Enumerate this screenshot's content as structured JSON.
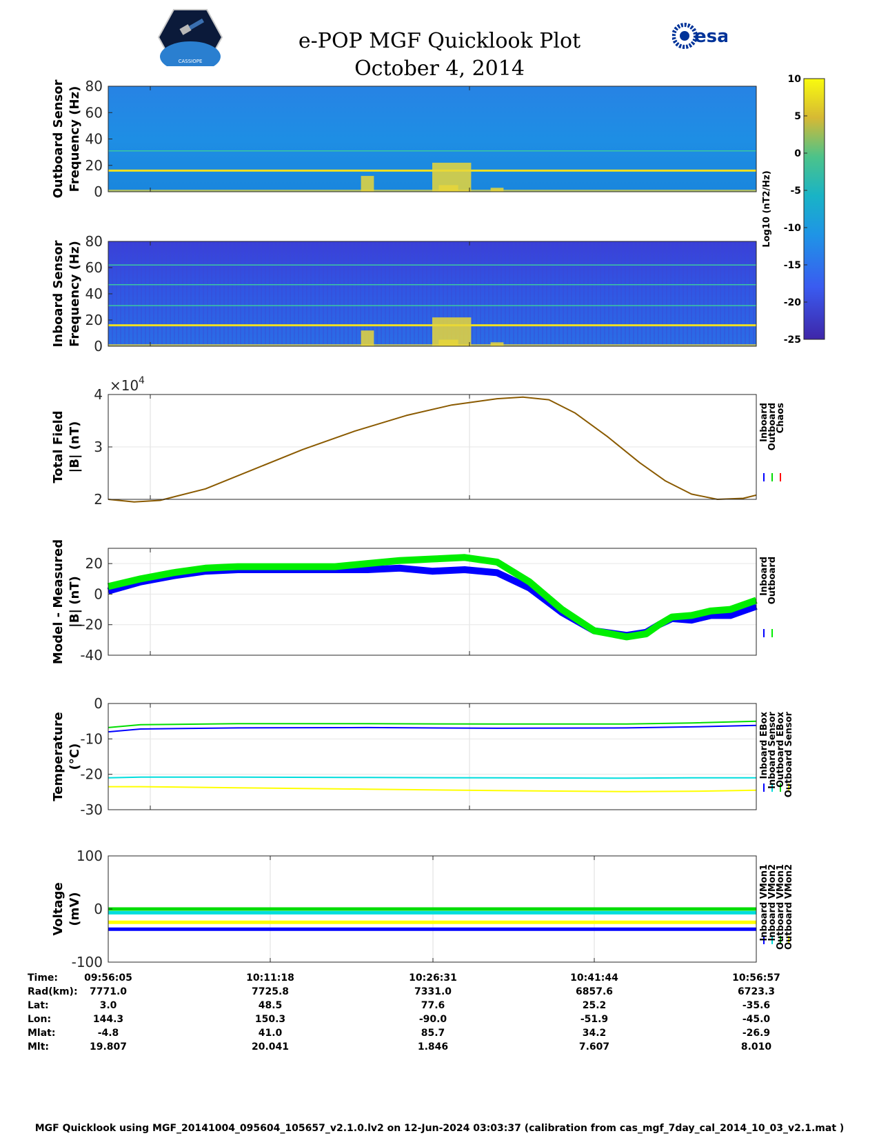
{
  "header": {
    "title": "e-POP MGF Quicklook Plot",
    "date": "October 4, 2014",
    "logo_left": "CASSIOPE",
    "logo_right": "esa"
  },
  "footer": "MGF Quicklook using MGF_20141004_095604_105657_v2.1.0.lv2 on 12-Jun-2024 03:03:37 (calibration from cas_mgf_7day_cal_2014_10_03_v2.1.mat )",
  "colorbar": {
    "label": "Log10 (nT2/Hz)",
    "ticks": [
      10,
      5,
      0,
      -5,
      -10,
      -15,
      -20,
      -25
    ],
    "range": [
      -25,
      10
    ]
  },
  "info_table": {
    "row_labels": [
      "Time:",
      "Rad(km):",
      "Lat:",
      "Lon:",
      "Mlat:",
      "Mlt:"
    ],
    "columns": [
      [
        "09:56:05",
        "7771.0",
        "3.0",
        "144.3",
        "-4.8",
        "19.807"
      ],
      [
        "10:11:18",
        "7725.8",
        "48.5",
        "150.3",
        "41.0",
        "20.041"
      ],
      [
        "10:26:31",
        "7331.0",
        "77.6",
        "-90.0",
        "85.7",
        "1.846"
      ],
      [
        "10:41:44",
        "6857.6",
        "25.2",
        "-51.9",
        "34.2",
        "7.607"
      ],
      [
        "10:56:57",
        "6723.3",
        "-35.6",
        "-45.0",
        "-26.9",
        "8.010"
      ]
    ]
  },
  "chart_data": [
    {
      "type": "heatmap",
      "name": "outboard-spectrogram",
      "ylabel": "Outboard Sensor Frequency (Hz)",
      "ylabel_lines": [
        "Outboard Sensor",
        "Frequency (Hz)"
      ],
      "ylim": [
        0,
        80
      ],
      "yticks": [
        0,
        20,
        40,
        60,
        80
      ],
      "x": [
        0,
        1
      ],
      "lines_hz": [
        16,
        31
      ]
    },
    {
      "type": "heatmap",
      "name": "inboard-spectrogram",
      "ylabel": "Inboard Sensor Frequency (Hz)",
      "ylabel_lines": [
        "Inboard Sensor",
        "Frequency (Hz)"
      ],
      "ylim": [
        0,
        80
      ],
      "yticks": [
        0,
        20,
        40,
        60,
        80
      ],
      "x": [
        0,
        1
      ],
      "lines_hz": [
        16,
        31,
        47,
        62
      ]
    },
    {
      "type": "line",
      "name": "total-field",
      "ylabel": "Total Field |B| (nT)",
      "ylabel_lines": [
        "Total Field",
        "|B| (nT)"
      ],
      "exponent_label": "×10",
      "exponent": "4",
      "ylim": [
        2,
        4
      ],
      "yticks": [
        2,
        3,
        4
      ],
      "legend": [
        "Inboard",
        "Outboard",
        "Chaos"
      ],
      "legend_colors": [
        "#0000ff",
        "#00dd00",
        "#ff0000"
      ],
      "x": [
        0,
        0.04,
        0.08,
        0.15,
        0.22,
        0.3,
        0.38,
        0.46,
        0.53,
        0.6,
        0.64,
        0.68,
        0.72,
        0.77,
        0.82,
        0.86,
        0.9,
        0.94,
        0.98,
        1.0
      ],
      "series": [
        {
          "name": "Chaos",
          "values": [
            2.0,
            1.95,
            1.98,
            2.2,
            2.55,
            2.95,
            3.3,
            3.6,
            3.8,
            3.92,
            3.95,
            3.9,
            3.65,
            3.2,
            2.7,
            2.35,
            2.1,
            2.0,
            2.02,
            2.08
          ]
        }
      ]
    },
    {
      "type": "line",
      "name": "model-minus-measured",
      "ylabel": "Model - Measured |B| (nT)",
      "ylabel_lines": [
        "Model - Measured",
        "|B| (nT)"
      ],
      "ylim": [
        -40,
        30
      ],
      "yticks": [
        -40,
        -20,
        0,
        20
      ],
      "legend": [
        "Inboard",
        "Outboard"
      ],
      "legend_colors": [
        "#0000ff",
        "#00ee00"
      ],
      "x": [
        0,
        0.05,
        0.1,
        0.15,
        0.2,
        0.25,
        0.3,
        0.35,
        0.4,
        0.45,
        0.5,
        0.55,
        0.6,
        0.65,
        0.7,
        0.75,
        0.8,
        0.83,
        0.85,
        0.87,
        0.9,
        0.93,
        0.96,
        1.0
      ],
      "series": [
        {
          "name": "Inboard",
          "values": [
            2,
            8,
            12,
            15,
            16,
            16,
            16,
            16,
            16,
            17,
            15,
            16,
            14,
            4,
            -12,
            -24,
            -27,
            -25,
            -20,
            -16,
            -17,
            -14,
            -14,
            -8
          ]
        },
        {
          "name": "Outboard",
          "values": [
            5,
            10,
            14,
            17,
            18,
            18,
            18,
            18,
            20,
            22,
            23,
            24,
            21,
            8,
            -10,
            -24,
            -28,
            -26,
            -20,
            -15,
            -14,
            -11,
            -10,
            -4
          ]
        }
      ]
    },
    {
      "type": "line",
      "name": "temperature",
      "ylabel": "Temperature (°C)",
      "ylabel_lines": [
        "Temperature",
        "(°C)"
      ],
      "ylim": [
        -30,
        0
      ],
      "yticks": [
        -30,
        -20,
        -10,
        0
      ],
      "legend": [
        "Inboard EBox",
        "Inboard Sensor",
        "Outboard EBox",
        "Outboard Sensor"
      ],
      "legend_colors": [
        "#0000ff",
        "#00dddd",
        "#00dd00",
        "#ffff00"
      ],
      "x": [
        0,
        0.05,
        0.2,
        0.4,
        0.6,
        0.8,
        0.9,
        1.0
      ],
      "series": [
        {
          "name": "Inboard EBox",
          "values": [
            -8,
            -7.2,
            -6.9,
            -6.8,
            -7.0,
            -6.9,
            -6.6,
            -6.2
          ]
        },
        {
          "name": "Inboard Sensor",
          "values": [
            -21,
            -20.8,
            -20.8,
            -20.9,
            -21.0,
            -21.1,
            -21.0,
            -21.0
          ]
        },
        {
          "name": "Outboard EBox",
          "values": [
            -6.8,
            -6.0,
            -5.7,
            -5.7,
            -5.8,
            -5.8,
            -5.5,
            -5.0
          ]
        },
        {
          "name": "Outboard Sensor",
          "values": [
            -23.5,
            -23.5,
            -23.8,
            -24.2,
            -24.6,
            -24.9,
            -24.8,
            -24.5
          ]
        }
      ]
    },
    {
      "type": "line",
      "name": "voltage",
      "ylabel": "Voltage (mV)",
      "ylabel_lines": [
        "Voltage",
        "(mV)"
      ],
      "ylim": [
        -100,
        100
      ],
      "yticks": [
        -100,
        0,
        100
      ],
      "legend": [
        "Inboard VMon1",
        "Inboard VMon2",
        "Outboard VMon1",
        "Outboard VMon2"
      ],
      "legend_colors": [
        "#0000ff",
        "#00dddd",
        "#00dd00",
        "#ffff00"
      ],
      "x": [
        0,
        1
      ],
      "series": [
        {
          "name": "Inboard VMon1",
          "values": [
            -38,
            -38
          ]
        },
        {
          "name": "Inboard VMon2",
          "values": [
            -7,
            -7
          ]
        },
        {
          "name": "Outboard VMon1",
          "values": [
            0,
            0
          ]
        },
        {
          "name": "Outboard VMon2",
          "values": [
            -25,
            -25
          ]
        }
      ]
    }
  ]
}
